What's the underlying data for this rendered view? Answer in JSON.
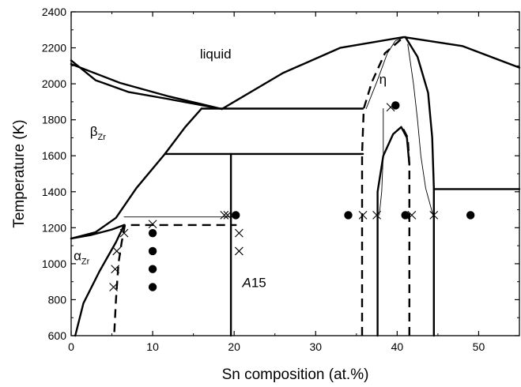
{
  "chart_data": {
    "type": "scatter",
    "xlabel": "Sn composition (at.%)",
    "ylabel": "Temperature (K)",
    "xlim": [
      0,
      55
    ],
    "ylim": [
      600,
      2400
    ],
    "xticks": [
      0,
      10,
      20,
      30,
      40,
      50
    ],
    "yticks": [
      600,
      800,
      1000,
      1200,
      1400,
      1600,
      1800,
      2000,
      2200,
      2400
    ],
    "xtick_labels": [
      "0",
      "10",
      "20",
      "30",
      "40",
      "50"
    ],
    "ytick_labels": [
      "600",
      "800",
      "1000",
      "1200",
      "1400",
      "1600",
      "1800",
      "2000",
      "2200",
      "2400"
    ],
    "grid": false,
    "annotations": [
      {
        "text": "liquid",
        "x": 15.8,
        "y": 2140
      },
      {
        "text": "η",
        "x": 37.8,
        "y": 2000
      },
      {
        "text": "A15",
        "x": 21,
        "y": 870,
        "italic_part": "A",
        "rest": "15"
      }
    ],
    "phase_labels": [
      {
        "base": "β",
        "sub": "Zr",
        "x": 2.3,
        "y": 1710
      },
      {
        "base": "α",
        "sub": "Zr",
        "x": 0.3,
        "y": 1020
      }
    ],
    "series": [
      {
        "marker": "circle",
        "points": [
          [
            10,
            1170
          ],
          [
            10,
            1070
          ],
          [
            10,
            970
          ],
          [
            10,
            870
          ],
          [
            20.2,
            1270
          ],
          [
            34,
            1270
          ],
          [
            39.8,
            1880
          ],
          [
            41,
            1270
          ],
          [
            49,
            1270
          ]
        ]
      },
      {
        "marker": "cross",
        "points": [
          [
            6.5,
            1170
          ],
          [
            5.6,
            1070
          ],
          [
            5.4,
            970
          ],
          [
            5.2,
            870
          ],
          [
            10,
            1220
          ],
          [
            18.8,
            1270
          ],
          [
            19.2,
            1270
          ],
          [
            20.6,
            1170
          ],
          [
            20.6,
            1070
          ],
          [
            35.8,
            1270
          ],
          [
            37.5,
            1270
          ],
          [
            39.2,
            1870
          ],
          [
            41.8,
            1270
          ],
          [
            44.5,
            1270
          ]
        ]
      }
    ],
    "phase_lines": [
      {
        "style": "solid",
        "width": 2.4,
        "points": [
          [
            0,
            2110
          ],
          [
            6,
            2005
          ],
          [
            12,
            1930
          ],
          [
            18.5,
            1860
          ]
        ]
      },
      {
        "style": "solid",
        "width": 2.4,
        "points": [
          [
            0,
            2130
          ],
          [
            3,
            2020
          ],
          [
            7,
            1955
          ],
          [
            12,
            1915
          ],
          [
            18.5,
            1860
          ]
        ]
      },
      {
        "style": "solid",
        "width": 2.4,
        "points": [
          [
            18.5,
            1860
          ],
          [
            26,
            2060
          ],
          [
            33,
            2200
          ],
          [
            40.8,
            2260
          ],
          [
            48,
            2210
          ],
          [
            55,
            2090
          ]
        ]
      },
      {
        "style": "solid",
        "width": 2.4,
        "points": [
          [
            0,
            1140
          ],
          [
            3,
            1175
          ],
          [
            5.5,
            1255
          ],
          [
            8,
            1420
          ],
          [
            11.5,
            1610
          ],
          [
            14,
            1760
          ],
          [
            16,
            1862
          ]
        ]
      },
      {
        "style": "solid",
        "width": 2.4,
        "points": [
          [
            0.5,
            600
          ],
          [
            1.5,
            780
          ],
          [
            3.5,
            960
          ],
          [
            5.5,
            1120
          ],
          [
            6.5,
            1215
          ]
        ]
      },
      {
        "style": "solid",
        "width": 2.4,
        "points": [
          [
            0,
            1140
          ],
          [
            2.5,
            1160
          ],
          [
            5,
            1190
          ],
          [
            6.5,
            1215
          ]
        ]
      },
      {
        "style": "solid",
        "width": 2.4,
        "points": [
          [
            16,
            1862
          ],
          [
            35.8,
            1862
          ]
        ]
      },
      {
        "style": "solid",
        "width": 2.4,
        "points": [
          [
            11.5,
            1610
          ],
          [
            35.8,
            1610
          ]
        ]
      },
      {
        "style": "solid",
        "width": 2.4,
        "points": [
          [
            19.6,
            600
          ],
          [
            19.6,
            1610
          ]
        ]
      },
      {
        "style": "solid",
        "width": 2.4,
        "points": [
          [
            37.6,
            600
          ],
          [
            37.6,
            1400
          ],
          [
            38.3,
            1600
          ],
          [
            39.5,
            1720
          ],
          [
            40.5,
            1760
          ],
          [
            41.2,
            1700
          ],
          [
            41.5,
            1550
          ]
        ]
      },
      {
        "style": "solid",
        "width": 2.4,
        "points": [
          [
            41,
            2260
          ],
          [
            42.5,
            2150
          ],
          [
            43.8,
            1950
          ],
          [
            44.3,
            1700
          ],
          [
            44.5,
            1420
          ],
          [
            44.5,
            600
          ]
        ]
      },
      {
        "style": "solid",
        "width": 2.4,
        "points": [
          [
            44.5,
            1415
          ],
          [
            55,
            1415
          ]
        ]
      },
      {
        "style": "thin",
        "width": 0.9,
        "points": [
          [
            6.5,
            1260
          ],
          [
            20.6,
            1260
          ]
        ]
      },
      {
        "style": "thin",
        "width": 0.9,
        "points": [
          [
            36.2,
            1862
          ],
          [
            37.5,
            2010
          ],
          [
            38.8,
            2170
          ],
          [
            39.8,
            2240
          ],
          [
            41,
            2260
          ]
        ]
      },
      {
        "style": "thin",
        "width": 0.9,
        "points": [
          [
            38.3,
            1862
          ],
          [
            38.3,
            1610
          ],
          [
            38.1,
            1400
          ],
          [
            37.8,
            1270
          ]
        ]
      },
      {
        "style": "thin",
        "width": 0.9,
        "points": [
          [
            41.3,
            2220
          ],
          [
            42,
            2000
          ],
          [
            42.5,
            1800
          ],
          [
            42.9,
            1600
          ],
          [
            43.5,
            1420
          ],
          [
            44.4,
            1270
          ]
        ]
      },
      {
        "style": "dashed",
        "width": 2.4,
        "points": [
          [
            5.3,
            620
          ],
          [
            5.5,
            800
          ],
          [
            5.8,
            1000
          ],
          [
            6.2,
            1120
          ],
          [
            6.6,
            1215
          ],
          [
            20.3,
            1215
          ]
        ]
      },
      {
        "style": "dashed",
        "width": 2.4,
        "points": [
          [
            35.7,
            600
          ],
          [
            35.7,
            1610
          ],
          [
            35.9,
            1862
          ],
          [
            36.9,
            2010
          ],
          [
            38.5,
            2170
          ],
          [
            40.8,
            2260
          ]
        ]
      },
      {
        "style": "dashed",
        "width": 2.4,
        "points": [
          [
            41.5,
            600
          ],
          [
            41.5,
            1550
          ],
          [
            41.3,
            1700
          ],
          [
            40.5,
            1770
          ]
        ]
      }
    ]
  }
}
